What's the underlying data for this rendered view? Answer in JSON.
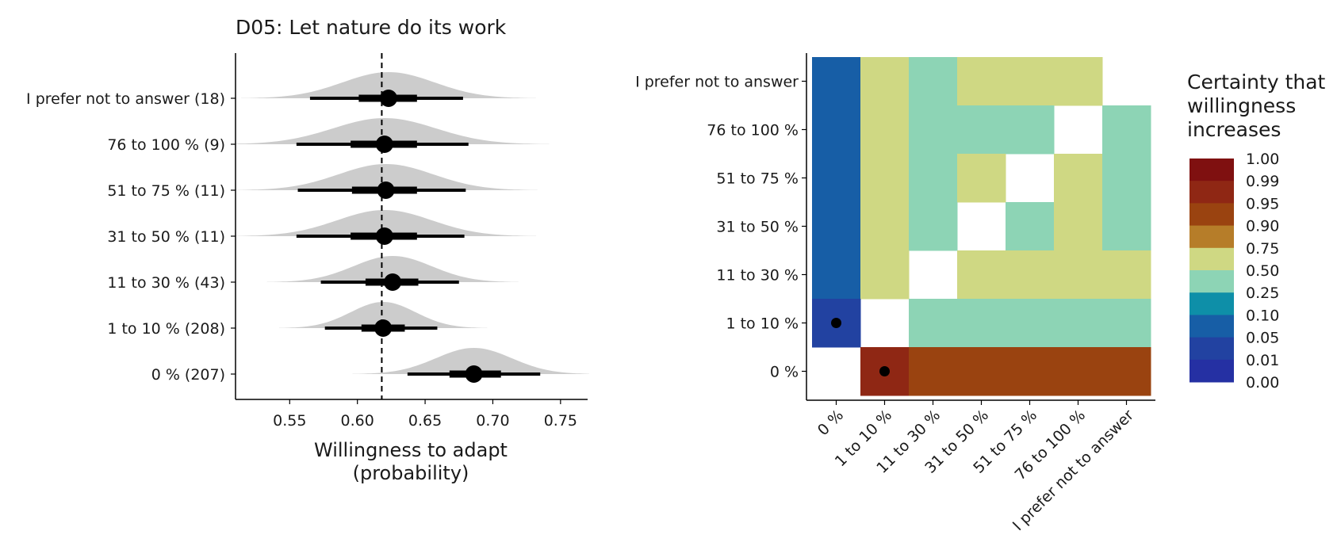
{
  "chart_data": [
    {
      "type": "halfeye",
      "title": "D05: Let nature do its work",
      "xlabel": [
        "Willingness to adapt",
        "(probability)"
      ],
      "xlim": [
        0.51,
        0.77
      ],
      "xticks": [
        0.55,
        0.6,
        0.65,
        0.7,
        0.75
      ],
      "xtick_labels": [
        "0.55",
        "0.60",
        "0.65",
        "0.70",
        "0.75"
      ],
      "reference_line": 0.618,
      "rows": [
        {
          "label": "I prefer not to answer (18)",
          "center": 0.623,
          "sd": 0.034,
          "inner": [
            0.601,
            0.644
          ],
          "outer": [
            0.565,
            0.678
          ]
        },
        {
          "label": "76 to 100 % (9)",
          "center": 0.62,
          "sd": 0.038,
          "inner": [
            0.595,
            0.644
          ],
          "outer": [
            0.555,
            0.682
          ]
        },
        {
          "label": "51 to 75 % (11)",
          "center": 0.621,
          "sd": 0.035,
          "inner": [
            0.596,
            0.644
          ],
          "outer": [
            0.556,
            0.68
          ]
        },
        {
          "label": "31 to 50 % (11)",
          "center": 0.62,
          "sd": 0.035,
          "inner": [
            0.595,
            0.644
          ],
          "outer": [
            0.555,
            0.679
          ]
        },
        {
          "label": "11 to 30 % (43)",
          "center": 0.626,
          "sd": 0.029,
          "inner": [
            0.606,
            0.645
          ],
          "outer": [
            0.573,
            0.675
          ]
        },
        {
          "label": "1 to 10 % (208)",
          "center": 0.619,
          "sd": 0.024,
          "inner": [
            0.603,
            0.635
          ],
          "outer": [
            0.576,
            0.659
          ]
        },
        {
          "label": "0 % (207)",
          "center": 0.686,
          "sd": 0.028,
          "inner": [
            0.668,
            0.706
          ],
          "outer": [
            0.637,
            0.735
          ]
        }
      ]
    },
    {
      "type": "heatmap",
      "x_categories": [
        "0 %",
        "1 to 10 %",
        "11 to 30 %",
        "31 to 50 %",
        "51 to 75 %",
        "76 to 100 %",
        "I prefer not to answer"
      ],
      "y_categories": [
        "I prefer not to answer",
        "76 to 100 %",
        "51 to 75 %",
        "31 to 50 %",
        "11 to 30 %",
        "1 to 10 %",
        "0 %"
      ],
      "legend_title": [
        "Certainty that",
        "willingness",
        "increases"
      ],
      "legend_labels": [
        "1.00",
        "0.99",
        "0.95",
        "0.90",
        "0.75",
        "0.50",
        "0.25",
        "0.10",
        "0.05",
        "0.01",
        "0.00"
      ],
      "legend_colors": [
        "#7f1010",
        "#8f2714",
        "#9a4310",
        "#b67d29",
        "#cfd883",
        "#8dd4b5",
        "#0e8fa8",
        "#175ea6",
        "#2242a1",
        "#2530a3"
      ],
      "cell_colors": [
        [
          "#175ea6",
          "#cfd883",
          "#8dd4b5",
          "#cfd883",
          "#cfd883",
          "#cfd883",
          null
        ],
        [
          "#175ea6",
          "#cfd883",
          "#8dd4b5",
          "#8dd4b5",
          "#8dd4b5",
          null,
          "#8dd4b5"
        ],
        [
          "#175ea6",
          "#cfd883",
          "#8dd4b5",
          "#cfd883",
          null,
          "#cfd883",
          "#8dd4b5"
        ],
        [
          "#175ea6",
          "#cfd883",
          "#8dd4b5",
          null,
          "#8dd4b5",
          "#cfd883",
          "#8dd4b5"
        ],
        [
          "#175ea6",
          "#cfd883",
          null,
          "#cfd883",
          "#cfd883",
          "#cfd883",
          "#cfd883"
        ],
        [
          "#2242a1",
          null,
          "#8dd4b5",
          "#8dd4b5",
          "#8dd4b5",
          "#8dd4b5",
          "#8dd4b5"
        ],
        [
          null,
          "#8f2714",
          "#9a4310",
          "#9a4310",
          "#9a4310",
          "#9a4310",
          "#9a4310"
        ]
      ],
      "dots": [
        [
          5,
          0
        ],
        [
          6,
          1
        ]
      ]
    }
  ]
}
